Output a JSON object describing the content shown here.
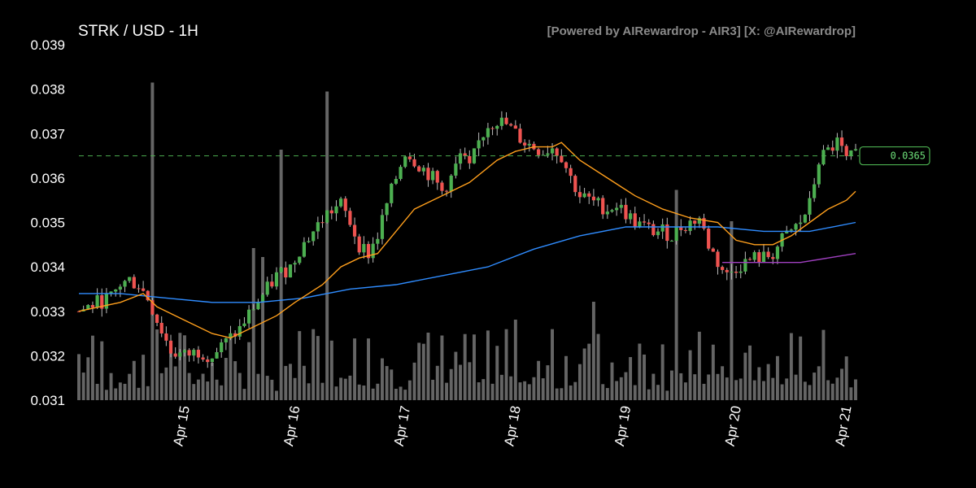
{
  "header": {
    "title": "STRK / USD - 1H",
    "credit": "[Powered by AIRewardrop - AIR3] [X: @AIRewardrop]"
  },
  "chart_data": {
    "type": "candlestick",
    "title": "STRK / USD - 1H",
    "ylim": [
      0.031,
      0.039
    ],
    "y_ticks": [
      "0.031",
      "0.032",
      "0.033",
      "0.034",
      "0.035",
      "0.036",
      "0.037",
      "0.038",
      "0.039"
    ],
    "y_tick_values": [
      0.031,
      0.032,
      0.033,
      0.034,
      0.035,
      0.036,
      0.037,
      0.038,
      0.039
    ],
    "x_ticks": [
      "Apr 15",
      "Apr 16",
      "Apr 17",
      "Apr 18",
      "Apr 19",
      "Apr 20",
      "Apr 21"
    ],
    "x_tick_hours": [
      24,
      48,
      72,
      96,
      120,
      144,
      168
    ],
    "hours_start": 1,
    "current_price": 0.0365,
    "current_price_label": "0.0365",
    "grid": false,
    "colors": {
      "up": "#4caf50",
      "down": "#ef5350",
      "ma_fast": "#ff9f1c",
      "ma_slow": "#2f8cff",
      "ma_long": "#a040c0",
      "volume": "#777777",
      "price_line": "#4caf50",
      "price_tag_border": "#4caf50",
      "price_tag_text": "#6ee07a"
    },
    "price_anchors": [
      [
        1,
        0.033
      ],
      [
        5,
        0.0332
      ],
      [
        8,
        0.0333
      ],
      [
        10,
        0.0336
      ],
      [
        12,
        0.0337
      ],
      [
        14,
        0.0336
      ],
      [
        16,
        0.0333
      ],
      [
        18,
        0.0328
      ],
      [
        21,
        0.0321
      ],
      [
        24,
        0.032
      ],
      [
        27,
        0.0321
      ],
      [
        30,
        0.032
      ],
      [
        33,
        0.0323
      ],
      [
        36,
        0.0326
      ],
      [
        39,
        0.0331
      ],
      [
        42,
        0.0335
      ],
      [
        44,
        0.0338
      ],
      [
        47,
        0.034
      ],
      [
        49,
        0.0344
      ],
      [
        52,
        0.0348
      ],
      [
        55,
        0.0352
      ],
      [
        58,
        0.0354
      ],
      [
        60,
        0.035
      ],
      [
        62,
        0.0345
      ],
      [
        64,
        0.0343
      ],
      [
        66,
        0.0347
      ],
      [
        68,
        0.0354
      ],
      [
        70,
        0.036
      ],
      [
        72,
        0.0366
      ],
      [
        74,
        0.0364
      ],
      [
        76,
        0.0362
      ],
      [
        78,
        0.036
      ],
      [
        80,
        0.0357
      ],
      [
        82,
        0.036
      ],
      [
        84,
        0.0365
      ],
      [
        86,
        0.0362
      ],
      [
        88,
        0.0368
      ],
      [
        90,
        0.0372
      ],
      [
        92,
        0.0373
      ],
      [
        94,
        0.0372
      ],
      [
        96,
        0.037
      ],
      [
        98,
        0.0368
      ],
      [
        100,
        0.0367
      ],
      [
        102,
        0.0366
      ],
      [
        104,
        0.0367
      ],
      [
        106,
        0.0365
      ],
      [
        108,
        0.036
      ],
      [
        110,
        0.0356
      ],
      [
        112,
        0.0355
      ],
      [
        114,
        0.0354
      ],
      [
        116,
        0.0353
      ],
      [
        118,
        0.0354
      ],
      [
        120,
        0.0352
      ],
      [
        122,
        0.035
      ],
      [
        124,
        0.0349
      ],
      [
        126,
        0.0348
      ],
      [
        128,
        0.0348
      ],
      [
        130,
        0.0347
      ],
      [
        132,
        0.0349
      ],
      [
        134,
        0.035
      ],
      [
        136,
        0.0351
      ],
      [
        138,
        0.0345
      ],
      [
        140,
        0.0341
      ],
      [
        142,
        0.0338
      ],
      [
        144,
        0.034
      ],
      [
        146,
        0.0341
      ],
      [
        148,
        0.0342
      ],
      [
        150,
        0.0342
      ],
      [
        152,
        0.0343
      ],
      [
        154,
        0.0346
      ],
      [
        156,
        0.0348
      ],
      [
        158,
        0.035
      ],
      [
        160,
        0.0354
      ],
      [
        162,
        0.0364
      ],
      [
        164,
        0.0366
      ],
      [
        166,
        0.0368
      ],
      [
        168,
        0.0364
      ],
      [
        170,
        0.0365
      ]
    ],
    "ma_fast": [
      [
        1,
        0.033
      ],
      [
        10,
        0.0332
      ],
      [
        15,
        0.0334
      ],
      [
        18,
        0.0331
      ],
      [
        24,
        0.0328
      ],
      [
        30,
        0.0325
      ],
      [
        34,
        0.0324
      ],
      [
        38,
        0.0326
      ],
      [
        44,
        0.0329
      ],
      [
        48,
        0.0332
      ],
      [
        54,
        0.0336
      ],
      [
        58,
        0.034
      ],
      [
        62,
        0.0342
      ],
      [
        66,
        0.0343
      ],
      [
        70,
        0.0348
      ],
      [
        74,
        0.0353
      ],
      [
        80,
        0.0356
      ],
      [
        86,
        0.0359
      ],
      [
        92,
        0.0364
      ],
      [
        96,
        0.0366
      ],
      [
        100,
        0.0367
      ],
      [
        104,
        0.0367
      ],
      [
        106,
        0.0368
      ],
      [
        110,
        0.0364
      ],
      [
        116,
        0.036
      ],
      [
        122,
        0.0356
      ],
      [
        128,
        0.0353
      ],
      [
        134,
        0.0351
      ],
      [
        140,
        0.035
      ],
      [
        144,
        0.0346
      ],
      [
        148,
        0.0345
      ],
      [
        152,
        0.0345
      ],
      [
        156,
        0.0347
      ],
      [
        160,
        0.035
      ],
      [
        164,
        0.0353
      ],
      [
        168,
        0.0355
      ],
      [
        170,
        0.0357
      ]
    ],
    "ma_slow": [
      [
        1,
        0.0334
      ],
      [
        10,
        0.0334
      ],
      [
        20,
        0.0333
      ],
      [
        30,
        0.0332
      ],
      [
        40,
        0.0332
      ],
      [
        50,
        0.0333
      ],
      [
        60,
        0.0335
      ],
      [
        70,
        0.0336
      ],
      [
        80,
        0.0338
      ],
      [
        90,
        0.034
      ],
      [
        100,
        0.0344
      ],
      [
        110,
        0.0347
      ],
      [
        120,
        0.0349
      ],
      [
        130,
        0.0349
      ],
      [
        140,
        0.0349
      ],
      [
        150,
        0.0348
      ],
      [
        160,
        0.0348
      ],
      [
        165,
        0.0349
      ],
      [
        170,
        0.035
      ]
    ],
    "ma_long": [
      [
        141,
        0.0341
      ],
      [
        150,
        0.0341
      ],
      [
        158,
        0.0341
      ],
      [
        164,
        0.0342
      ],
      [
        170,
        0.0343
      ]
    ],
    "volume_ylim": [
      0,
      0.008
    ],
    "volume_spikes": [
      [
        17,
        0.0071
      ],
      [
        41,
        0.0032
      ],
      [
        39,
        0.0034
      ],
      [
        45,
        0.0056
      ],
      [
        55,
        0.0069
      ],
      [
        131,
        0.0047
      ],
      [
        143,
        0.004
      ],
      [
        113,
        0.0022
      ],
      [
        96,
        0.0018
      ]
    ]
  }
}
